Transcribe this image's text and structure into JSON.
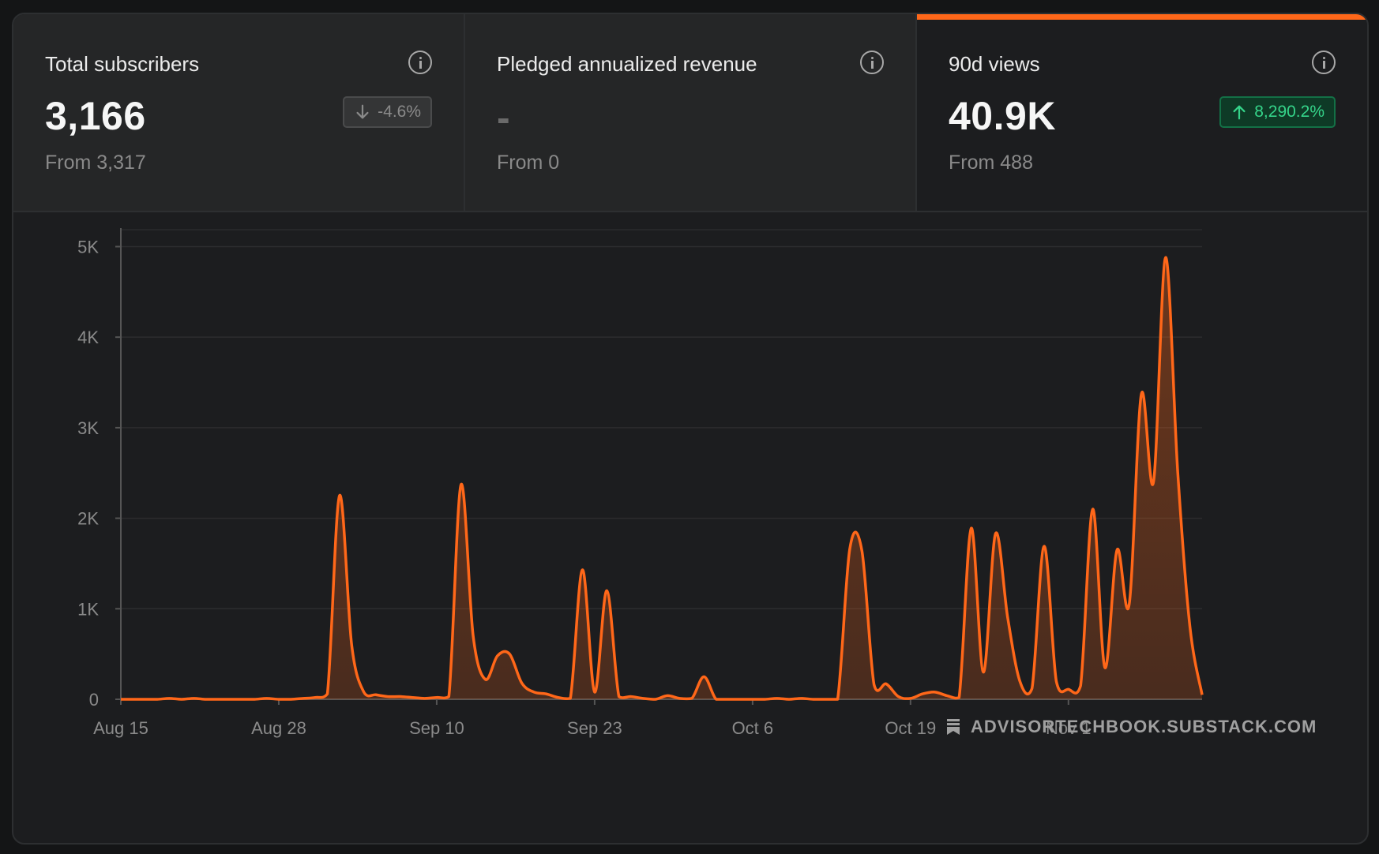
{
  "cards": [
    {
      "label": "Total subscribers",
      "value": "3,166",
      "from": "From 3,317",
      "change": "-4.6%",
      "direction": "down",
      "info_icon": "info-icon"
    },
    {
      "label": "Pledged annualized revenue",
      "value": "-",
      "from": "From 0",
      "info_icon": "info-icon"
    },
    {
      "label": "90d views",
      "value": "40.9K",
      "from": "From 488",
      "change": "8,290.2%",
      "direction": "up",
      "info_icon": "info-icon",
      "active": true
    }
  ],
  "colors": {
    "accent": "#ff6719",
    "positive": "#35d48a",
    "neutral": "#8a8a8a"
  },
  "watermark": {
    "text": "ADVISORTECHBOOK.SUBSTACK.COM",
    "icon": "bookmark-icon"
  },
  "chart_data": {
    "type": "area",
    "x_unit": "day",
    "x_start": "Aug 15",
    "xticks": [
      "Aug 15",
      "Aug 28",
      "Sep 10",
      "Sep 23",
      "Oct 6",
      "Oct 19",
      "Nov 1"
    ],
    "xtick_days": [
      0,
      13,
      26,
      39,
      52,
      65,
      78
    ],
    "yticks": [
      "0",
      "1K",
      "2K",
      "3K",
      "4K",
      "5K"
    ],
    "ytick_values": [
      0,
      1000,
      2000,
      3000,
      4000,
      5000
    ],
    "ylim": [
      0,
      5100
    ],
    "xlim": [
      0,
      89
    ],
    "grid": true,
    "points": [
      [
        0,
        0
      ],
      [
        1,
        0
      ],
      [
        2,
        0
      ],
      [
        3,
        0
      ],
      [
        4,
        10
      ],
      [
        5,
        0
      ],
      [
        6,
        10
      ],
      [
        7,
        0
      ],
      [
        8,
        0
      ],
      [
        9,
        0
      ],
      [
        10,
        0
      ],
      [
        11,
        0
      ],
      [
        12,
        10
      ],
      [
        13,
        0
      ],
      [
        14,
        0
      ],
      [
        15,
        10
      ],
      [
        16,
        20
      ],
      [
        17,
        60
      ],
      [
        18,
        2250
      ],
      [
        19,
        600
      ],
      [
        20,
        80
      ],
      [
        21,
        50
      ],
      [
        22,
        30
      ],
      [
        23,
        30
      ],
      [
        24,
        20
      ],
      [
        25,
        10
      ],
      [
        26,
        20
      ],
      [
        27,
        30
      ],
      [
        28,
        2370
      ],
      [
        29,
        700
      ],
      [
        30,
        220
      ],
      [
        31,
        480
      ],
      [
        32,
        500
      ],
      [
        33,
        180
      ],
      [
        34,
        80
      ],
      [
        35,
        60
      ],
      [
        36,
        20
      ],
      [
        37,
        10
      ],
      [
        38,
        1430
      ],
      [
        39,
        80
      ],
      [
        40,
        1200
      ],
      [
        41,
        30
      ],
      [
        42,
        30
      ],
      [
        43,
        10
      ],
      [
        44,
        0
      ],
      [
        45,
        40
      ],
      [
        46,
        10
      ],
      [
        47,
        10
      ],
      [
        48,
        250
      ],
      [
        49,
        0
      ],
      [
        50,
        0
      ],
      [
        51,
        0
      ],
      [
        52,
        0
      ],
      [
        53,
        0
      ],
      [
        54,
        10
      ],
      [
        55,
        0
      ],
      [
        56,
        10
      ],
      [
        57,
        0
      ],
      [
        58,
        0
      ],
      [
        59,
        0
      ],
      [
        60,
        1660
      ],
      [
        61,
        1640
      ],
      [
        62,
        160
      ],
      [
        63,
        170
      ],
      [
        64,
        30
      ],
      [
        65,
        10
      ],
      [
        66,
        60
      ],
      [
        67,
        80
      ],
      [
        68,
        40
      ],
      [
        69,
        20
      ],
      [
        70,
        1890
      ],
      [
        71,
        300
      ],
      [
        72,
        1830
      ],
      [
        73,
        900
      ],
      [
        74,
        200
      ],
      [
        75,
        120
      ],
      [
        76,
        1690
      ],
      [
        77,
        200
      ],
      [
        78,
        110
      ],
      [
        79,
        150
      ],
      [
        80,
        2100
      ],
      [
        81,
        350
      ],
      [
        82,
        1650
      ],
      [
        83,
        1050
      ],
      [
        84,
        3370
      ],
      [
        85,
        2400
      ],
      [
        86,
        4880
      ],
      [
        87,
        2500
      ],
      [
        88,
        800
      ],
      [
        89,
        50
      ]
    ]
  }
}
